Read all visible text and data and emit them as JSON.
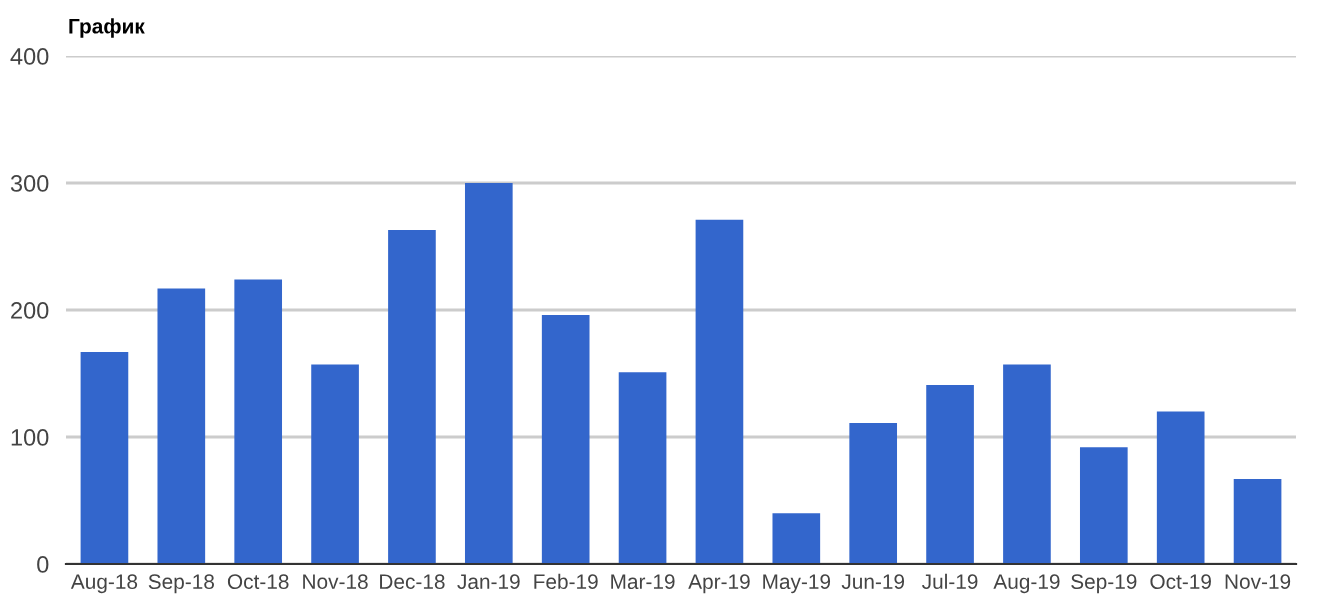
{
  "chart_data": {
    "type": "bar",
    "title": "График",
    "categories": [
      "Aug-18",
      "Sep-18",
      "Oct-18",
      "Nov-18",
      "Dec-18",
      "Jan-19",
      "Feb-19",
      "Mar-19",
      "Apr-19",
      "May-19",
      "Jun-19",
      "Jul-19",
      "Aug-19",
      "Sep-19",
      "Oct-19",
      "Nov-19"
    ],
    "values": [
      167,
      217,
      224,
      157,
      263,
      300,
      196,
      151,
      271,
      40,
      111,
      141,
      157,
      92,
      120,
      67
    ],
    "color": "#3366cc",
    "ylim": [
      0,
      400
    ],
    "yticks": [
      0,
      100,
      200,
      300,
      400
    ],
    "grid": "y"
  }
}
